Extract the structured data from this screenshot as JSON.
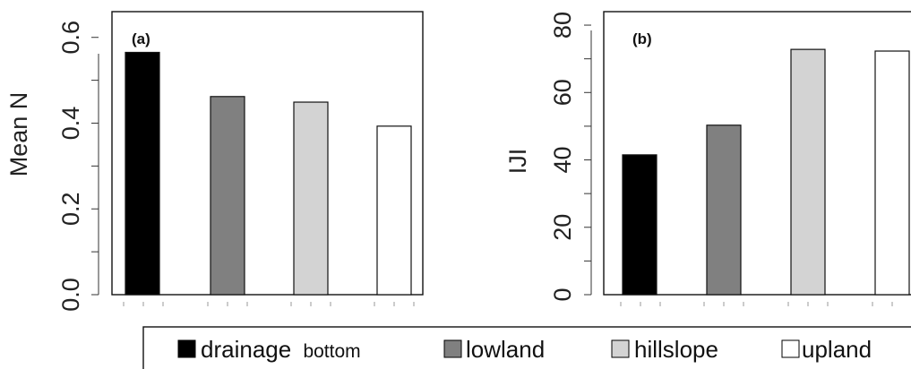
{
  "chart_data": [
    {
      "type": "bar",
      "panel_label": "(a)",
      "ylabel": "Mean  N",
      "ylim": [
        0,
        0.66
      ],
      "yticks": [
        "0.0",
        "0.2",
        "0.4",
        "0.6"
      ],
      "ytick_values": [
        0.0,
        0.2,
        0.4,
        0.6
      ],
      "categories": [
        "drainage bottom",
        "lowland",
        "hillslope",
        "upland"
      ],
      "values": [
        0.565,
        0.462,
        0.449,
        0.393
      ],
      "colors": [
        "#000000",
        "#808080",
        "#d3d3d3",
        "#ffffff"
      ]
    },
    {
      "type": "bar",
      "panel_label": "(b)",
      "ylabel": "IJI",
      "ylim": [
        0,
        84
      ],
      "yticks": [
        "0",
        "20",
        "40",
        "60",
        "80"
      ],
      "ytick_values": [
        0,
        20,
        40,
        60,
        80
      ],
      "categories": [
        "drainage bottom",
        "lowland",
        "hillslope",
        "upland"
      ],
      "values": [
        41.5,
        50.3,
        72.8,
        72.3
      ],
      "colors": [
        "#000000",
        "#808080",
        "#d3d3d3",
        "#ffffff"
      ]
    }
  ],
  "legend": {
    "placement": "bottom",
    "items": [
      {
        "label_main": "drainage",
        "label_small": "bottom",
        "color": "#000000"
      },
      {
        "label_main": "lowland",
        "label_small": "",
        "color": "#808080"
      },
      {
        "label_main": "hillslope",
        "label_small": "",
        "color": "#d3d3d3"
      },
      {
        "label_main": "upland",
        "label_small": "",
        "color": "#ffffff"
      }
    ]
  }
}
